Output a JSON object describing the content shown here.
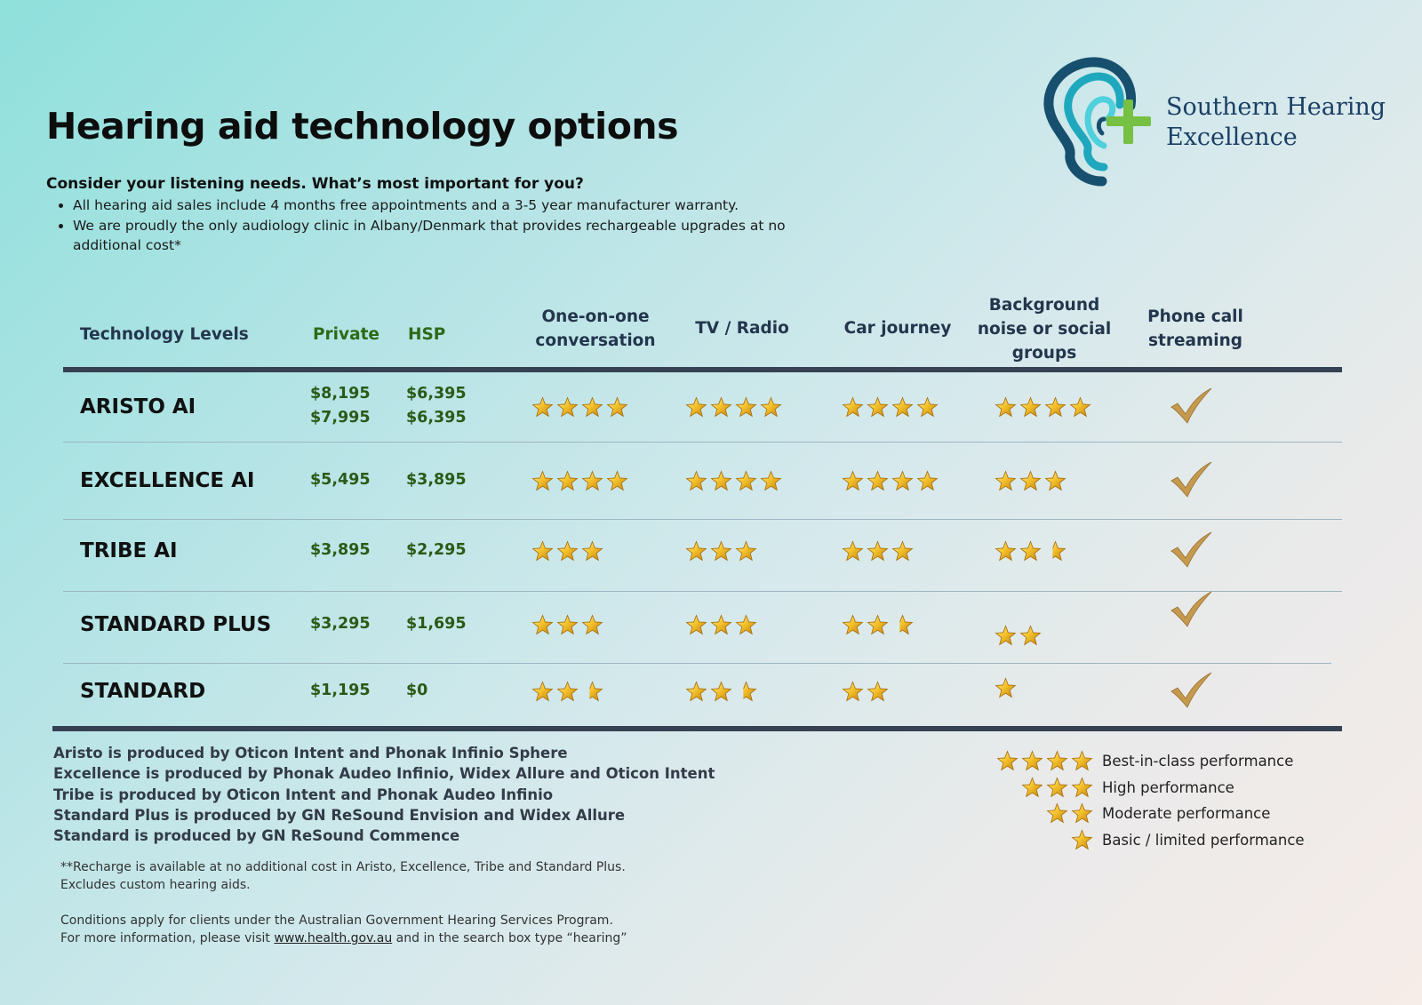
{
  "title": "Hearing aid technology options",
  "subtitle": "Consider your listening needs. What’s most important for you?",
  "bullets": [
    "All hearing aid sales include 4 months free appointments and a 3-5 year manufacturer warranty.",
    "We are proudly the only audiology clinic in Albany/Denmark that provides rechargeable upgrades at no additional cost*"
  ],
  "brand": {
    "line1": "Southern Hearing",
    "line2": "Excellence",
    "logo_icon": "ear-with-plus-icon"
  },
  "columns": {
    "level": "Technology Levels",
    "private": "Private",
    "hsp": "HSP",
    "one_on_one": [
      "One-on-one",
      "conversation"
    ],
    "tv": "TV / Radio",
    "car": "Car journey",
    "background": [
      "Background",
      "noise or social",
      "groups"
    ],
    "phone": [
      "Phone call",
      "streaming"
    ]
  },
  "rows": [
    {
      "name": "ARISTO AI",
      "private": [
        "$8,195",
        "$7,995"
      ],
      "hsp": [
        "$6,395",
        "$6,395"
      ],
      "one_on_one": 4,
      "tv": 4,
      "car": 4,
      "background": 4,
      "phone": true
    },
    {
      "name": "EXCELLENCE AI",
      "private": [
        "$5,495"
      ],
      "hsp": [
        "$3,895"
      ],
      "one_on_one": 4,
      "tv": 4,
      "car": 4,
      "background": 3,
      "phone": true
    },
    {
      "name": "TRIBE AI",
      "private": [
        "$3,895"
      ],
      "hsp": [
        "$2,295"
      ],
      "one_on_one": 3,
      "tv": 3,
      "car": 3,
      "background": 2.5,
      "phone": true
    },
    {
      "name": "STANDARD PLUS",
      "private": [
        "$3,295"
      ],
      "hsp": [
        "$1,695"
      ],
      "one_on_one": 3,
      "tv": 3,
      "car": 2.5,
      "background": 2,
      "phone": true
    },
    {
      "name": "STANDARD",
      "private": [
        "$1,195"
      ],
      "hsp": [
        "$0"
      ],
      "one_on_one": 2.5,
      "tv": 2.5,
      "car": 2,
      "background": 1,
      "phone": true
    }
  ],
  "producers": [
    "Aristo is produced by Oticon Intent and Phonak Infinio Sphere",
    "Excellence is produced by Phonak Audeo Infinio, Widex Allure and Oticon Intent",
    "Tribe is produced by Oticon Intent and Phonak Audeo Infinio",
    "Standard Plus is produced by GN ReSound Envision and Widex Allure",
    "Standard is produced by GN ReSound Commence"
  ],
  "notes": {
    "recharge_line1": "**Recharge is available at no additional cost in Aristo, Excellence, Tribe and Standard Plus.",
    "recharge_line2": "Excludes custom hearing aids.",
    "conditions_line1": "Conditions apply for clients under the Australian Government Hearing Services Program.",
    "conditions_pre": "For more information, please visit ",
    "conditions_link": "www.health.gov.au",
    "conditions_post": " and in the search box type “hearing”"
  },
  "legend": [
    {
      "stars": 4,
      "label": "Best-in-class performance"
    },
    {
      "stars": 3,
      "label": "High performance"
    },
    {
      "stars": 2,
      "label": "Moderate performance"
    },
    {
      "stars": 1,
      "label": "Basic / limited performance"
    }
  ],
  "colors": {
    "star_gold": "#f2b51b",
    "check_gold": "#c69a4e",
    "price_green": "#2a5a16",
    "header_navy": "#23364d"
  }
}
